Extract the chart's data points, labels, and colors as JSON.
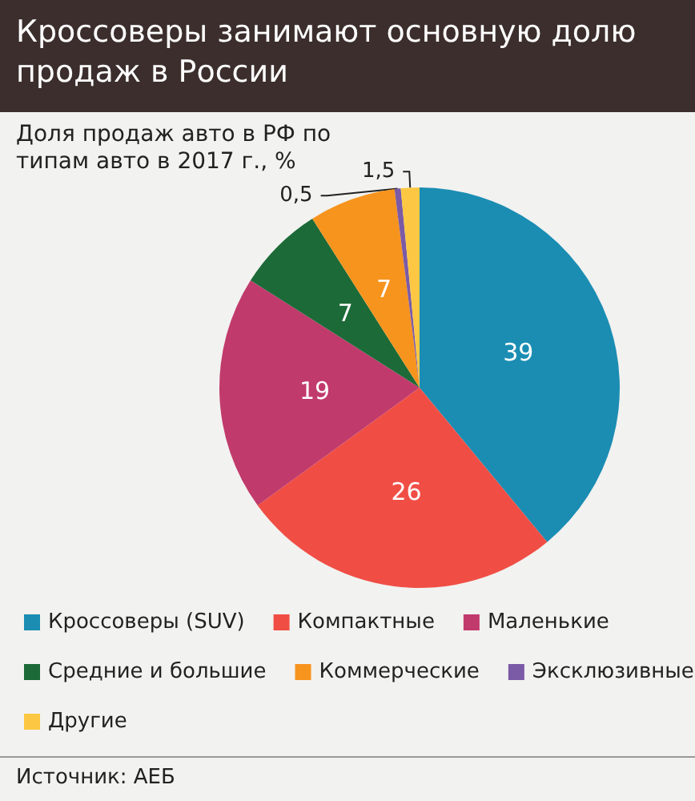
{
  "chart_data": {
    "type": "pie",
    "title": "Кроссоверы занимают основную долю продаж в России",
    "subtitle": "Доля продаж авто в РФ по типам авто в 2017 г., %",
    "categories": [
      "Кроссоверы (SUV)",
      "Компактные",
      "Маленькие",
      "Средние и большие",
      "Коммерческие",
      "Эксклюзивные",
      "Другие"
    ],
    "values": [
      39,
      26,
      19,
      7,
      7,
      0.5,
      1.5
    ],
    "value_labels": [
      "39",
      "26",
      "19",
      "7",
      "7",
      "0,5",
      "1,5"
    ],
    "colors": [
      "#1b8db3",
      "#f04e45",
      "#c13a6c",
      "#1c6a37",
      "#f7941e",
      "#7b5aa6",
      "#fcc843"
    ],
    "legend": "bottom",
    "annotations": [
      "Источник: АЕБ"
    ]
  }
}
